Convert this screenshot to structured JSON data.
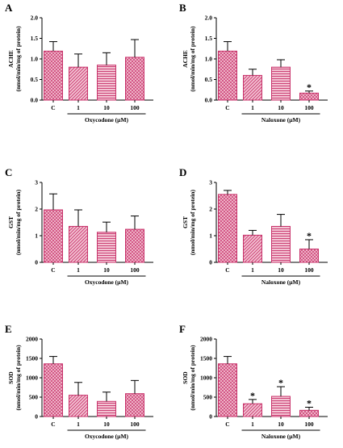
{
  "colors": {
    "fill": "#f3c3d3",
    "pattern": "#c8336b",
    "axis": "#000000"
  },
  "chart_data": [
    {
      "type": "bar",
      "panel": "A",
      "ylabel": "ACHE",
      "ylabel2": "(nmol/min/mg of protein)",
      "categories": [
        "C",
        "1",
        "10",
        "100"
      ],
      "values": [
        1.19,
        0.8,
        0.85,
        1.04
      ],
      "errors": [
        0.23,
        0.32,
        0.3,
        0.43
      ],
      "patterns": [
        "cross",
        "diag",
        "horiz",
        "cross"
      ],
      "significant": [
        false,
        false,
        false,
        false
      ],
      "group_label": "Oxycodone (µM)",
      "ylim": [
        0,
        2.0
      ],
      "yticks": [
        0,
        0.5,
        1.0,
        1.5,
        2.0
      ],
      "yticklabels": [
        "0.0",
        "0.5",
        "1.0",
        "1.5",
        "2.0"
      ]
    },
    {
      "type": "bar",
      "panel": "B",
      "ylabel": "ACHE",
      "ylabel2": "(nmol/min/mg of protein)",
      "categories": [
        "C",
        "1",
        "10",
        "100"
      ],
      "values": [
        1.19,
        0.6,
        0.8,
        0.17
      ],
      "errors": [
        0.23,
        0.15,
        0.18,
        0.05
      ],
      "patterns": [
        "cross",
        "diag",
        "horiz",
        "cross"
      ],
      "significant": [
        false,
        false,
        false,
        true
      ],
      "group_label": "Naloxone (µM)",
      "ylim": [
        0,
        2.0
      ],
      "yticks": [
        0,
        0.5,
        1.0,
        1.5,
        2.0
      ],
      "yticklabels": [
        "0.0",
        "0.5",
        "1.0",
        "1.5",
        "2.0"
      ]
    },
    {
      "type": "bar",
      "panel": "C",
      "ylabel": "GST",
      "ylabel2": "(nmol/min/mg of protein)",
      "categories": [
        "C",
        "1",
        "10",
        "100"
      ],
      "values": [
        1.97,
        1.35,
        1.13,
        1.24
      ],
      "errors": [
        0.6,
        0.62,
        0.38,
        0.5
      ],
      "patterns": [
        "cross",
        "diag",
        "horiz",
        "cross"
      ],
      "significant": [
        false,
        false,
        false,
        false
      ],
      "group_label": "Oxycodone (µM)",
      "ylim": [
        0,
        3
      ],
      "yticks": [
        0,
        1,
        2,
        3
      ],
      "yticklabels": [
        "0",
        "1",
        "2",
        "3"
      ]
    },
    {
      "type": "bar",
      "panel": "D",
      "ylabel": "GST",
      "ylabel2": "(nmol/min/mg of protein)",
      "categories": [
        "C",
        "1",
        "10",
        "100"
      ],
      "values": [
        2.55,
        1.02,
        1.35,
        0.5
      ],
      "errors": [
        0.15,
        0.18,
        0.45,
        0.35
      ],
      "patterns": [
        "cross",
        "diag",
        "horiz",
        "cross"
      ],
      "significant": [
        false,
        false,
        false,
        true
      ],
      "group_label": "Naloxone (µM)",
      "ylim": [
        0,
        3
      ],
      "yticks": [
        0,
        1,
        2,
        3
      ],
      "yticklabels": [
        "0",
        "1",
        "2",
        "3"
      ]
    },
    {
      "type": "bar",
      "panel": "E",
      "ylabel": "SOD",
      "ylabel2": "(nmol/min/mg of protein)",
      "categories": [
        "C",
        "1",
        "10",
        "100"
      ],
      "values": [
        1360,
        550,
        390,
        590
      ],
      "errors": [
        190,
        330,
        240,
        340
      ],
      "patterns": [
        "cross",
        "diag",
        "horiz",
        "cross"
      ],
      "significant": [
        false,
        false,
        false,
        false
      ],
      "group_label": "Oxycodone (µM)",
      "ylim": [
        0,
        2000
      ],
      "yticks": [
        0,
        500,
        1000,
        1500,
        2000
      ],
      "yticklabels": [
        "0",
        "500",
        "1000",
        "1500",
        "2000"
      ]
    },
    {
      "type": "bar",
      "panel": "F",
      "ylabel": "SOD",
      "ylabel2": "(nmol/min/mg of protein)",
      "categories": [
        "C",
        "1",
        "10",
        "100"
      ],
      "values": [
        1360,
        330,
        520,
        160
      ],
      "errors": [
        190,
        110,
        250,
        80
      ],
      "patterns": [
        "cross",
        "diag",
        "horiz",
        "cross"
      ],
      "significant": [
        false,
        true,
        true,
        true
      ],
      "group_label": "Naloxone (µM)",
      "ylim": [
        0,
        2000
      ],
      "yticks": [
        0,
        500,
        1000,
        1500,
        2000
      ],
      "yticklabels": [
        "0",
        "500",
        "1000",
        "1500",
        "2000"
      ]
    }
  ],
  "significance_marker": "*"
}
